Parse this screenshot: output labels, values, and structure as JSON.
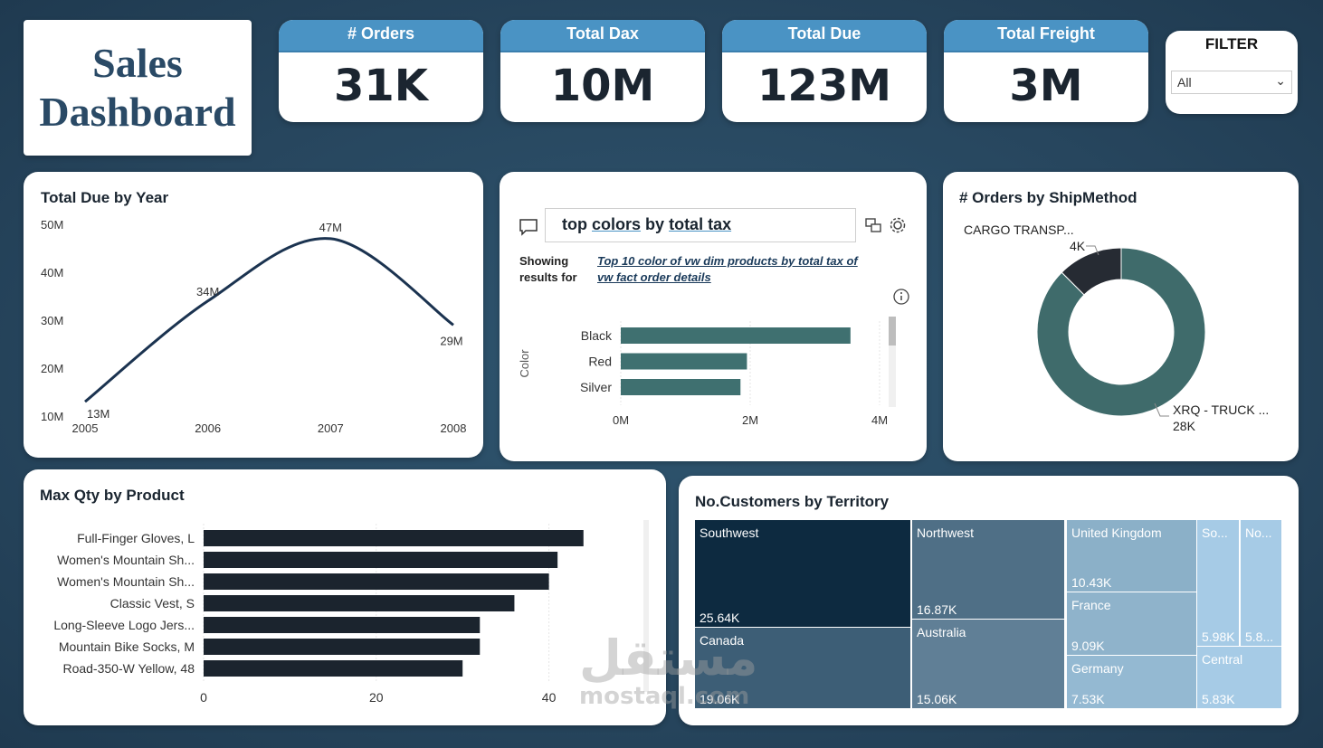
{
  "header": {
    "title_line1": "Sales",
    "title_line2": "Dashboard"
  },
  "kpis": [
    {
      "label": "# Orders",
      "value": "31K"
    },
    {
      "label": "Total Dax",
      "value": "10M"
    },
    {
      "label": "Total Due",
      "value": "123M"
    },
    {
      "label": "Total Freight",
      "value": "3M"
    }
  ],
  "filter": {
    "label": "FILTER",
    "selected": "All"
  },
  "qa": {
    "query_part1": "top",
    "query_part2": "colors",
    "query_part3": "by",
    "query_part4": "total tax",
    "showing_label": "Showing results for",
    "showing_link": "Top 10 color of vw dim products by total tax of vw fact order details"
  },
  "watermark": {
    "arabic": "مستقل",
    "latin": "mostaql.com"
  },
  "chart_data": [
    {
      "type": "line",
      "title": "Total Due by Year",
      "x": [
        "2005",
        "2006",
        "2007",
        "2008"
      ],
      "y": [
        13,
        34,
        47,
        29
      ],
      "data_labels": [
        "13M",
        "34M",
        "47M",
        "29M"
      ],
      "yticks": [
        "10M",
        "20M",
        "30M",
        "40M",
        "50M"
      ],
      "ylim": [
        10,
        50
      ],
      "color": "#1b3350"
    },
    {
      "type": "bar",
      "title": "",
      "orientation": "horizontal",
      "ylabel": "Color",
      "categories": [
        "Black",
        "Red",
        "Silver"
      ],
      "values": [
        3.55,
        1.95,
        1.85
      ],
      "xticks": [
        "0M",
        "2M",
        "4M"
      ],
      "xlim": [
        0,
        4
      ],
      "color": "#3f7070"
    },
    {
      "type": "pie",
      "title": "# Orders by ShipMethod",
      "donut": true,
      "slices": [
        {
          "name": "CARGO TRANSP...",
          "value": 4,
          "label": "4K",
          "color": "#262b33"
        },
        {
          "name": "XRQ - TRUCK ...",
          "value": 28,
          "label": "28K",
          "color": "#3f6b6b"
        }
      ]
    },
    {
      "type": "bar",
      "title": "Max Qty by Product",
      "orientation": "horizontal",
      "categories": [
        "Full-Finger Gloves, L",
        "Women's Mountain Sh...",
        "Women's Mountain Sh...",
        "Classic Vest, S",
        "Long-Sleeve Logo Jers...",
        "Mountain Bike Socks, M",
        "Road-350-W Yellow, 48"
      ],
      "values": [
        44,
        41,
        40,
        36,
        32,
        32,
        30
      ],
      "xticks": [
        "0",
        "20",
        "40"
      ],
      "xlim": [
        0,
        50
      ],
      "color": "#1b242e"
    },
    {
      "type": "treemap",
      "title": "No.Customers by Territory",
      "items": [
        {
          "name": "Southwest",
          "label": "25.64K",
          "color": "#0d2a40"
        },
        {
          "name": "Canada",
          "label": "19.06K",
          "color": "#3d5e76"
        },
        {
          "name": "Northwest",
          "label": "16.87K",
          "color": "#4f6f86"
        },
        {
          "name": "Australia",
          "label": "15.06K",
          "color": "#607f96"
        },
        {
          "name": "United Kingdom",
          "label": "10.43K",
          "color": "#8bb0c8"
        },
        {
          "name": "France",
          "label": "9.09K",
          "color": "#8fb3cb"
        },
        {
          "name": "Germany",
          "label": "7.53K",
          "color": "#94b9d2"
        },
        {
          "name": "So...",
          "label": "5.98K",
          "color": "#a6cbe6"
        },
        {
          "name": "No...",
          "label": "5.8...",
          "color": "#a6cbe6"
        },
        {
          "name": "Central",
          "label": "5.83K",
          "color": "#a6cbe6"
        }
      ]
    }
  ]
}
